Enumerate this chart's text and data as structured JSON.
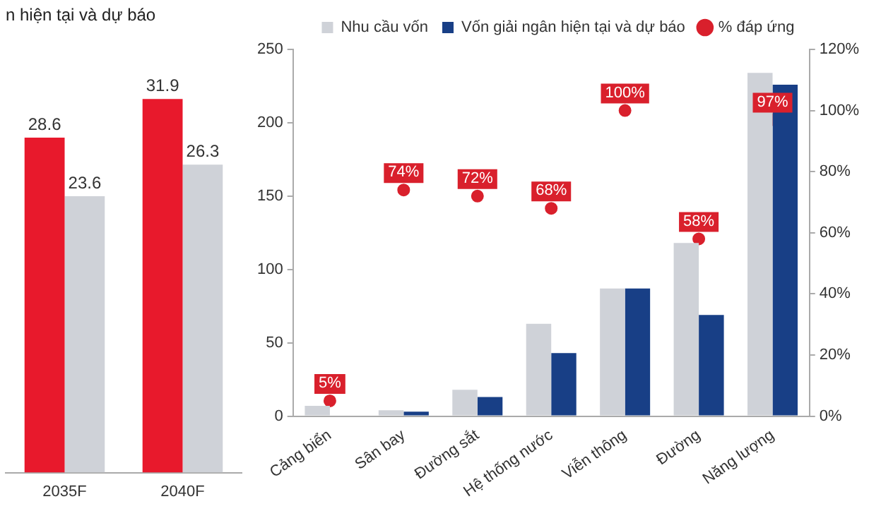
{
  "chart_data": [
    {
      "type": "bar",
      "title": "n hiện tại và dự báo",
      "categories": [
        "2035F",
        "2040F"
      ],
      "series": [
        {
          "color": "#e8192c",
          "values": [
            28.6,
            31.9
          ]
        },
        {
          "color": "#cfd2d8",
          "values": [
            23.6,
            26.3
          ]
        }
      ],
      "data_labels": true,
      "tick_labels": "x",
      "grid": false,
      "legend": false
    },
    {
      "type": "bar",
      "categories": [
        "Cảng biển",
        "Sân bay",
        "Đường sắt",
        "Hệ thống nước",
        "Viễn thông",
        "Đường",
        "Năng lượng"
      ],
      "series": [
        {
          "name": "Nhu cầu vốn",
          "color": "#cfd2d8",
          "values": [
            7,
            4,
            18,
            63,
            87,
            118,
            234
          ]
        },
        {
          "name": "Vốn giải ngân hiện tại và dự báo",
          "color": "#183f86",
          "values": [
            0,
            3,
            13,
            43,
            87,
            69,
            226
          ]
        },
        {
          "name": "% đáp ứng",
          "type": "scatter",
          "axis": "y2",
          "color": "#d9202c",
          "marker": "circle",
          "values": [
            5,
            74,
            72,
            68,
            100,
            58,
            97
          ],
          "value_labels": [
            "5%",
            "74%",
            "72%",
            "68%",
            "100%",
            "58%",
            "97%"
          ]
        }
      ],
      "ylim": [
        0,
        250
      ],
      "yticks": [
        0,
        50,
        100,
        150,
        200,
        250
      ],
      "y2lim": [
        0,
        120
      ],
      "y2ticks": [
        {
          "value": 0,
          "label": "0%"
        },
        {
          "value": 20,
          "label": "20%"
        },
        {
          "value": 40,
          "label": "40%"
        },
        {
          "value": 60,
          "label": "60%"
        },
        {
          "value": 80,
          "label": "80%"
        },
        {
          "value": 100,
          "label": "100%"
        },
        {
          "value": 120,
          "label": "120%"
        }
      ],
      "grid": false,
      "legend": "top"
    }
  ]
}
